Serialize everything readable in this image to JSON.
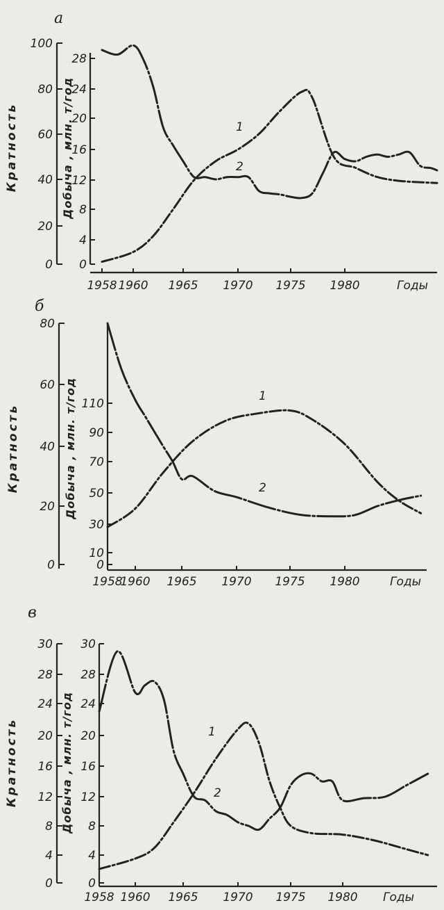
{
  "chart_data": [
    {
      "type": "line",
      "panel": "а",
      "ylabel_left": "Кратность",
      "ylabel_right": "Добыча , млн. т/год",
      "xlabel": "Годы",
      "x_ticks": [
        "1958",
        "1960",
        "1965",
        "1970",
        "1975",
        "1980"
      ],
      "y_left_ticks": [
        "0",
        "20",
        "40",
        "60",
        "80",
        "100"
      ],
      "y_right_ticks": [
        "0",
        "4",
        "8",
        "12",
        "16",
        "20",
        "24",
        "28"
      ],
      "y_left_range": [
        0,
        100
      ],
      "y_right_range": [
        0,
        28
      ],
      "series": [
        {
          "name": "1",
          "axis": "right",
          "x": [
            1958,
            1960,
            1962,
            1964,
            1966,
            1968,
            1970,
            1972,
            1974,
            1976,
            1977,
            1979,
            1981,
            1983,
            1985,
            1987,
            1989
          ],
          "values": [
            0.4,
            2,
            4.5,
            8,
            12,
            14.5,
            16,
            18,
            21,
            23.6,
            22.8,
            15,
            13.6,
            12.4,
            11.9,
            11.7,
            11.6
          ]
        },
        {
          "name": "2",
          "axis": "left",
          "x": [
            1958,
            1959,
            1960,
            1961,
            1962,
            1963,
            1964,
            1965,
            1966,
            1967,
            1968,
            1969,
            1970,
            1971,
            1972,
            1973,
            1974,
            1975,
            1976,
            1977,
            1978,
            1979,
            1980,
            1981,
            1982,
            1983,
            1984,
            1985,
            1986,
            1987,
            1988,
            1989
          ],
          "values": [
            97,
            95,
            99,
            93,
            81,
            63,
            55,
            48,
            41,
            41,
            40,
            41,
            41,
            41,
            35,
            34,
            33.5,
            32.5,
            32,
            34,
            43,
            52,
            49,
            48,
            50,
            51,
            50,
            51,
            52,
            46,
            45,
            44
          ]
        }
      ]
    },
    {
      "type": "line",
      "panel": "б",
      "ylabel_left": "Кратность",
      "ylabel_right": "Добыча , млн. т/год",
      "xlabel": "Годы",
      "x_ticks": [
        "1958",
        "1960",
        "1965",
        "1970",
        "1975",
        "1980"
      ],
      "y_left_ticks": [
        "0",
        "20",
        "40",
        "60",
        "80"
      ],
      "y_right_ticks": [
        "0",
        "10",
        "30",
        "50",
        "70",
        "90",
        "110"
      ],
      "y_left_range": [
        0,
        80
      ],
      "y_right_range": [
        0,
        110
      ],
      "series": [
        {
          "name": "1",
          "axis": "right",
          "x": [
            1958,
            1960,
            1963,
            1966,
            1969,
            1972,
            1975,
            1977,
            1980,
            1983,
            1985,
            1987
          ],
          "values": [
            28,
            40,
            63,
            84,
            98,
            103,
            105,
            99,
            82,
            57,
            45,
            37
          ]
        },
        {
          "name": "2",
          "axis": "left",
          "x": [
            1958,
            1959,
            1960,
            1961,
            1962,
            1963,
            1964,
            1965,
            1966,
            1968,
            1970,
            1973,
            1976,
            1979,
            1981,
            1983,
            1985,
            1987
          ],
          "values": [
            80,
            65,
            55,
            50,
            45,
            40,
            35,
            29,
            30,
            25,
            23,
            19.5,
            17,
            16.5,
            17,
            20,
            22,
            23.5
          ]
        }
      ]
    },
    {
      "type": "line",
      "panel": "в",
      "ylabel_left": "Кратность",
      "ylabel_right": "Добыча , млн. т/год",
      "xlabel": "Годы",
      "x_ticks": [
        "1958",
        "1960",
        "1965",
        "1970",
        "1975",
        "1980"
      ],
      "y_left_ticks": [
        "0",
        "4",
        "8",
        "12",
        "16",
        "20",
        "24",
        "28",
        "30"
      ],
      "y_right_ticks": [
        "0",
        "4",
        "8",
        "12",
        "16",
        "20",
        "24",
        "28",
        "30"
      ],
      "y_left_range": [
        0,
        30
      ],
      "y_right_range": [
        0,
        30
      ],
      "series": [
        {
          "name": "1",
          "axis": "right",
          "x": [
            1958,
            1960,
            1962,
            1964,
            1966,
            1968,
            1970,
            1971,
            1972,
            1973,
            1974,
            1975,
            1977,
            1980,
            1983,
            1986,
            1988
          ],
          "values": [
            2,
            3.5,
            5,
            8.5,
            12.5,
            17,
            20.8,
            21.5,
            19,
            14,
            10.5,
            8,
            7,
            6.8,
            6,
            4.8,
            4
          ]
        },
        {
          "name": "2",
          "axis": "left",
          "x": [
            1958,
            1959,
            1960,
            1961,
            1962,
            1963,
            1964,
            1965,
            1966,
            1967,
            1968,
            1969,
            1970,
            1971,
            1972,
            1973,
            1974,
            1975,
            1976,
            1977,
            1978,
            1979,
            1980,
            1982,
            1984,
            1986,
            1988
          ],
          "values": [
            23,
            29.5,
            25.5,
            26.5,
            27,
            24.5,
            18,
            15,
            12,
            11.5,
            10,
            9.5,
            8.5,
            8,
            7.5,
            9,
            10.5,
            13.5,
            14.8,
            15,
            14,
            14,
            11.5,
            11.8,
            12,
            13.5,
            15
          ]
        }
      ]
    }
  ]
}
